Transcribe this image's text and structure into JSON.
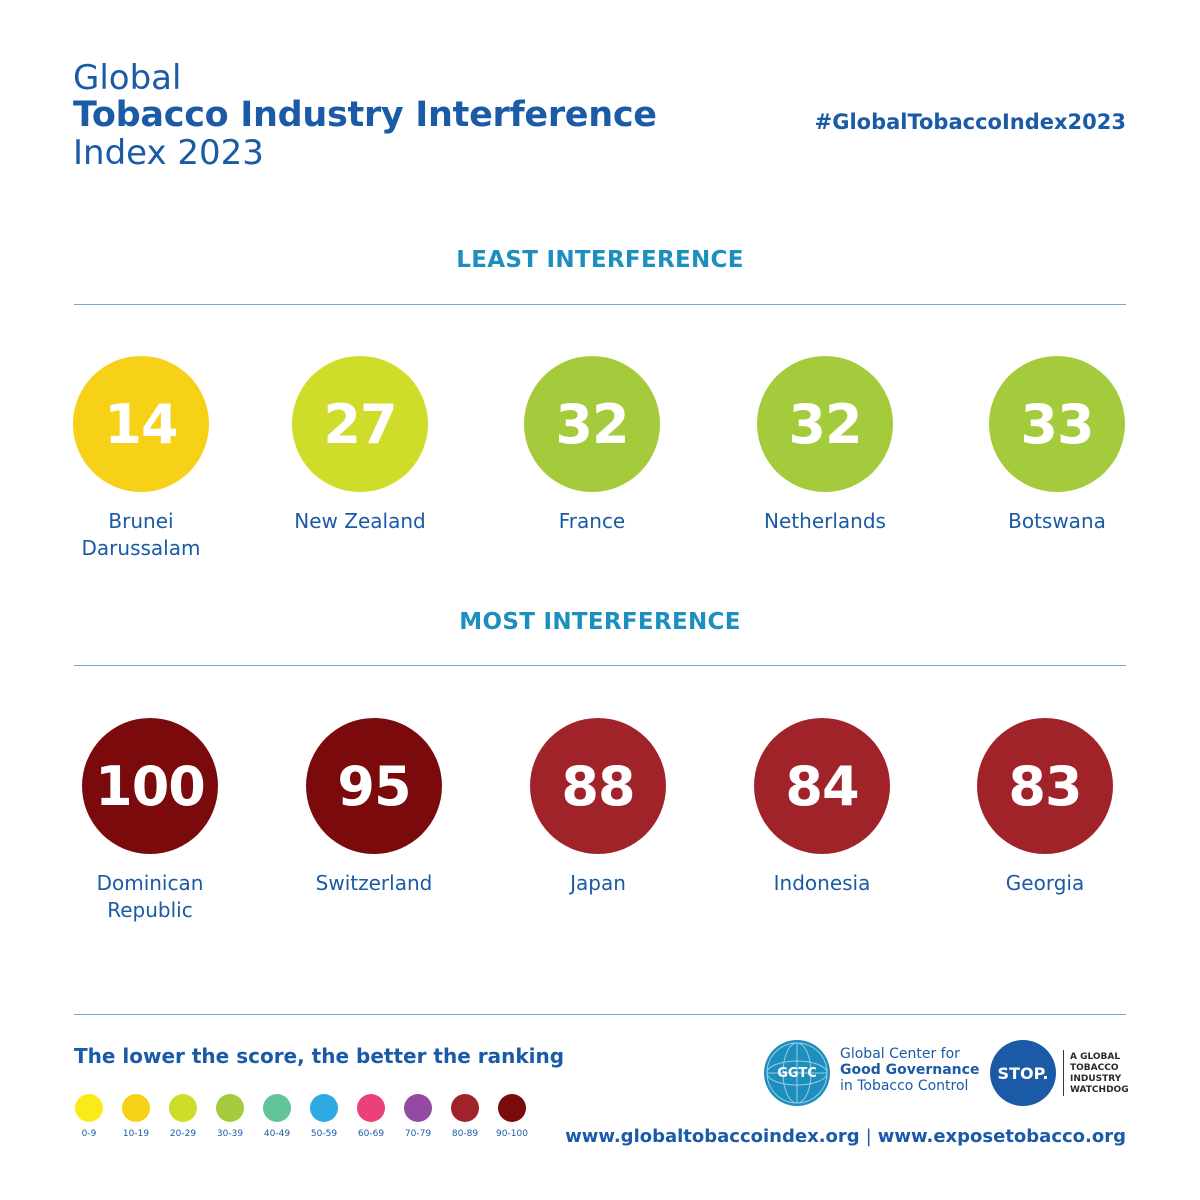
{
  "header": {
    "title_line1": "Global",
    "title_line2": "Tobacco Industry Interference",
    "title_line3": "Index 2023",
    "hashtag": "#GlobalTobaccoIndex2023"
  },
  "least": {
    "title": "LEAST INTERFERENCE",
    "items": [
      {
        "score": "14",
        "country": "Brunei\nDarussalam",
        "color": "#f7d117"
      },
      {
        "score": "27",
        "country": "New Zealand",
        "color": "#cfdc2a"
      },
      {
        "score": "32",
        "country": "France",
        "color": "#a4cb3b"
      },
      {
        "score": "32",
        "country": "Netherlands",
        "color": "#a4cb3b"
      },
      {
        "score": "33",
        "country": "Botswana",
        "color": "#a4cb3b"
      }
    ]
  },
  "most": {
    "title": "MOST INTERFERENCE",
    "items": [
      {
        "score": "100",
        "country": "Dominican\nRepublic",
        "color": "#7a0a0c"
      },
      {
        "score": "95",
        "country": "Switzerland",
        "color": "#7a0a0c"
      },
      {
        "score": "88",
        "country": "Japan",
        "color": "#a1232a"
      },
      {
        "score": "84",
        "country": "Indonesia",
        "color": "#a1232a"
      },
      {
        "score": "83",
        "country": "Georgia",
        "color": "#a1232a"
      }
    ]
  },
  "legend": {
    "title": "The lower the score, the better the ranking",
    "items": [
      {
        "label": "0-9",
        "color": "#fbea1a"
      },
      {
        "label": "10-19",
        "color": "#f7d117"
      },
      {
        "label": "20-29",
        "color": "#cfdc2a"
      },
      {
        "label": "30-39",
        "color": "#a4cb3b"
      },
      {
        "label": "40-49",
        "color": "#63c39b"
      },
      {
        "label": "50-59",
        "color": "#2fa9e1"
      },
      {
        "label": "60-69",
        "color": "#ec4178"
      },
      {
        "label": "70-79",
        "color": "#934aa0"
      },
      {
        "label": "80-89",
        "color": "#a1232a"
      },
      {
        "label": "90-100",
        "color": "#7a0a0c"
      }
    ]
  },
  "footer": {
    "ggtc_badge": "GGTC",
    "ggtc_line1": "Global Center for",
    "ggtc_line2": "Good Governance",
    "ggtc_line3": "in Tobacco Control",
    "stop_badge": "STOP.",
    "stop_text": "A GLOBAL\nTOBACCO\nINDUSTRY\nWATCHDOG",
    "url1": "www.globaltobaccoindex.org",
    "url_sep": "|",
    "url2": "www.exposetobacco.org"
  }
}
